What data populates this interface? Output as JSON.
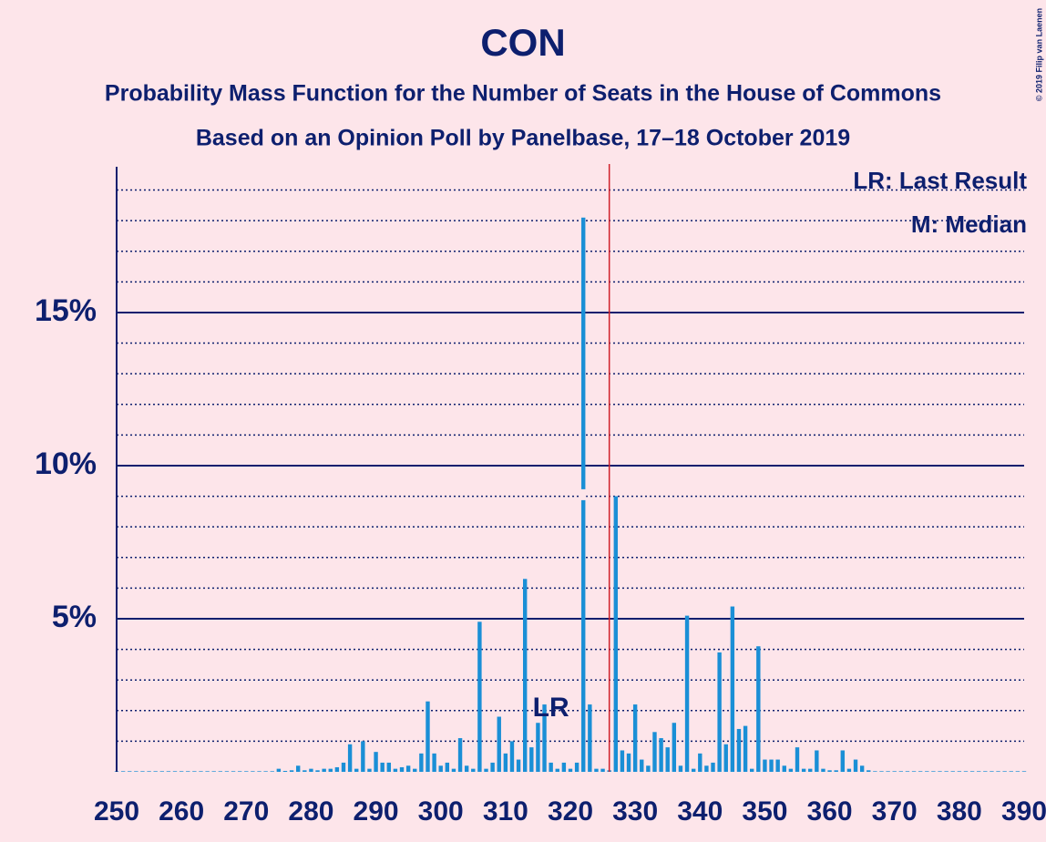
{
  "chart_data": {
    "type": "bar",
    "title": "CON",
    "subtitle": "Probability Mass Function for the Number of Seats in the House of Commons",
    "subtitle2": "Based on an Opinion Poll by Panelbase, 17–18 October 2019",
    "copyright": "© 2019 Filip van Laenen",
    "legend": [
      "LR: Last Result",
      "M: Median"
    ],
    "color": "#1a8fd6",
    "x": [
      250,
      251,
      252,
      253,
      254,
      255,
      256,
      257,
      258,
      259,
      260,
      261,
      262,
      263,
      264,
      265,
      266,
      267,
      268,
      269,
      270,
      271,
      272,
      273,
      274,
      275,
      276,
      277,
      278,
      279,
      280,
      281,
      282,
      283,
      284,
      285,
      286,
      287,
      288,
      289,
      290,
      291,
      292,
      293,
      294,
      295,
      296,
      297,
      298,
      299,
      300,
      301,
      302,
      303,
      304,
      305,
      306,
      307,
      308,
      309,
      310,
      311,
      312,
      313,
      314,
      315,
      316,
      317,
      318,
      319,
      320,
      321,
      322,
      323,
      324,
      325,
      326,
      327,
      328,
      329,
      330,
      331,
      332,
      333,
      334,
      335,
      336,
      337,
      338,
      339,
      340,
      341,
      342,
      343,
      344,
      345,
      346,
      347,
      348,
      349,
      350,
      351,
      352,
      353,
      354,
      355,
      356,
      357,
      358,
      359,
      360,
      361,
      362,
      363,
      364,
      365,
      366,
      367,
      368,
      369,
      370,
      371,
      372,
      373,
      374,
      375,
      376,
      377,
      378,
      379,
      380,
      381,
      382,
      383,
      384,
      385,
      386,
      387,
      388,
      389,
      390
    ],
    "values": [
      0.02,
      0.02,
      0.02,
      0.02,
      0.02,
      0.02,
      0.02,
      0.02,
      0.02,
      0.02,
      0.02,
      0.02,
      0.02,
      0.02,
      0.02,
      0.02,
      0.02,
      0.02,
      0.02,
      0.02,
      0.02,
      0.02,
      0.02,
      0.02,
      0.02,
      0.1,
      0.03,
      0.05,
      0.2,
      0.05,
      0.1,
      0.05,
      0.1,
      0.1,
      0.15,
      0.3,
      0.9,
      0.1,
      1.0,
      0.1,
      0.65,
      0.3,
      0.3,
      0.1,
      0.15,
      0.2,
      0.1,
      0.6,
      2.3,
      0.6,
      0.2,
      0.3,
      0.1,
      1.1,
      0.2,
      0.1,
      4.9,
      0.1,
      0.3,
      1.8,
      0.6,
      1.0,
      0.4,
      6.3,
      0.8,
      1.6,
      2.2,
      0.3,
      0.1,
      0.3,
      0.1,
      0.3,
      18.1,
      2.2,
      0.1,
      0.1,
      0.05,
      9.0,
      0.7,
      0.6,
      2.2,
      0.4,
      0.2,
      1.3,
      1.1,
      0.8,
      1.6,
      0.2,
      5.1,
      0.1,
      0.6,
      0.2,
      0.3,
      3.9,
      0.9,
      5.4,
      1.4,
      1.5,
      0.1,
      4.1,
      0.4,
      0.4,
      0.4,
      0.2,
      0.1,
      0.8,
      0.1,
      0.1,
      0.7,
      0.1,
      0.05,
      0.05,
      0.7,
      0.1,
      0.4,
      0.2,
      0.05,
      0.02,
      0.02,
      0.02,
      0.02,
      0.02,
      0.02,
      0.02,
      0.02,
      0.02,
      0.02,
      0.02,
      0.02,
      0.02,
      0.02,
      0.02,
      0.02,
      0.02,
      0.02,
      0.02,
      0.02,
      0.02,
      0.02,
      0.02,
      0.02
    ],
    "xlim": [
      250,
      390
    ],
    "xticks": [
      250,
      260,
      270,
      280,
      290,
      300,
      310,
      320,
      330,
      340,
      350,
      360,
      370,
      380,
      390
    ],
    "ylim": [
      0,
      19.76
    ],
    "yticks": [
      {
        "value": 5,
        "label": "5%"
      },
      {
        "value": 10,
        "label": "10%"
      },
      {
        "value": 15,
        "label": "15%"
      }
    ],
    "minor_yticks": [
      1,
      2,
      3,
      4,
      6,
      7,
      8,
      9,
      11,
      12,
      13,
      14,
      16,
      17,
      18,
      19
    ],
    "majority_line": {
      "x": 326,
      "color": "#d0202a"
    },
    "median": 322,
    "last_result": {
      "text": "LR",
      "x": 317
    }
  }
}
